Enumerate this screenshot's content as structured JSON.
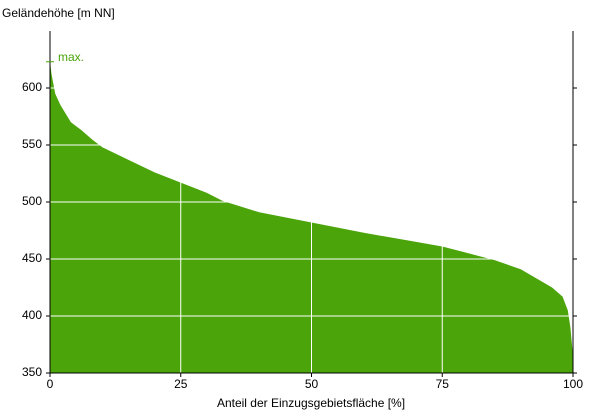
{
  "chart_data": {
    "type": "area",
    "ylabel": "Geländehöhe [m NN]",
    "xlabel": "Anteil der Einzugsgebietsfläche [%]",
    "x": [
      0,
      0.3,
      1,
      2,
      4,
      6,
      8,
      10,
      15,
      20,
      25,
      30,
      33,
      40,
      50,
      60,
      70,
      75,
      80,
      85,
      90,
      93,
      96,
      98,
      99,
      99.5,
      100
    ],
    "values": [
      623,
      612,
      595,
      585,
      570,
      563,
      555,
      548,
      537,
      526,
      517,
      508,
      501,
      491,
      482,
      473,
      465,
      461,
      455,
      449,
      441,
      433,
      425,
      417,
      405,
      390,
      365
    ],
    "color": "#4aa40a",
    "annotation": {
      "text": "max.",
      "value": 623
    },
    "xlim": [
      0,
      100
    ],
    "xticks": [
      0,
      25,
      50,
      75,
      100
    ],
    "ylim": [
      350,
      650
    ],
    "yticks": [
      350,
      400,
      450,
      500,
      550,
      600
    ],
    "grid": true
  }
}
